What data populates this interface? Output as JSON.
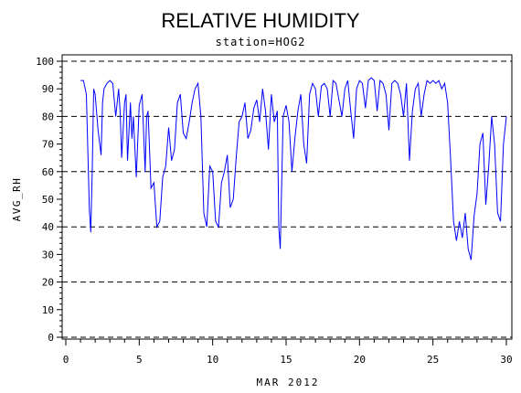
{
  "chart_data": {
    "type": "line",
    "title": "RELATIVE HUMIDITY",
    "subtitle": "station=HOG2",
    "xlabel": "MAR 2012",
    "ylabel": "AVG_RH",
    "xlim": [
      0,
      30
    ],
    "ylim": [
      0,
      100
    ],
    "x_ticks": [
      0,
      5,
      10,
      15,
      20,
      25,
      30
    ],
    "y_ticks": [
      0,
      10,
      20,
      30,
      40,
      50,
      60,
      70,
      80,
      90,
      100
    ],
    "gridlines_y": [
      0,
      20,
      40,
      60,
      80,
      100
    ],
    "grid": "horizontal dashed",
    "line_color": "#0000ff",
    "series": [
      {
        "x": [
          1.0,
          1.2,
          1.4,
          1.6,
          1.7,
          1.8,
          1.9,
          2.0,
          2.2,
          2.4,
          2.5,
          2.6,
          2.8,
          3.0,
          3.2,
          3.4,
          3.6,
          3.7,
          3.8,
          4.0,
          4.1,
          4.2,
          4.4,
          4.5,
          4.6,
          4.8,
          5.0,
          5.2,
          5.4,
          5.5,
          5.6,
          5.8,
          6.0,
          6.2,
          6.4,
          6.6,
          6.8,
          7.0,
          7.2,
          7.4,
          7.6,
          7.8,
          8.0,
          8.2,
          8.4,
          8.6,
          8.8,
          9.0,
          9.2,
          9.4,
          9.6,
          9.8,
          10.0,
          10.2,
          10.4,
          10.6,
          10.8,
          11.0,
          11.2,
          11.4,
          11.6,
          11.8,
          12.0,
          12.2,
          12.4,
          12.6,
          12.8,
          13.0,
          13.2,
          13.4,
          13.6,
          13.8,
          14.0,
          14.2,
          14.4,
          14.5,
          14.6,
          14.8,
          15.0,
          15.2,
          15.4,
          15.6,
          15.8,
          16.0,
          16.2,
          16.4,
          16.6,
          16.8,
          17.0,
          17.2,
          17.4,
          17.6,
          17.8,
          18.0,
          18.2,
          18.4,
          18.6,
          18.8,
          19.0,
          19.2,
          19.4,
          19.6,
          19.8,
          20.0,
          20.2,
          20.4,
          20.6,
          20.8,
          21.0,
          21.2,
          21.4,
          21.6,
          21.8,
          22.0,
          22.2,
          22.4,
          22.6,
          22.8,
          23.0,
          23.2,
          23.4,
          23.6,
          23.8,
          24.0,
          24.2,
          24.4,
          24.6,
          24.8,
          25.0,
          25.2,
          25.4,
          25.6,
          25.8,
          26.0,
          26.2,
          26.4,
          26.6,
          26.8,
          27.0,
          27.2,
          27.4,
          27.6,
          27.8,
          28.0,
          28.2,
          28.4,
          28.6,
          28.8,
          29.0,
          29.2,
          29.4,
          29.6,
          29.8,
          30.0
        ],
        "y": [
          93,
          93,
          88,
          47,
          38,
          60,
          90,
          88,
          75,
          66,
          85,
          90,
          92,
          93,
          92,
          80,
          90,
          82,
          65,
          85,
          88,
          64,
          85,
          72,
          80,
          58,
          84,
          88,
          60,
          80,
          82,
          54,
          56,
          40,
          42,
          58,
          62,
          76,
          64,
          68,
          85,
          88,
          74,
          72,
          78,
          85,
          90,
          92,
          80,
          45,
          40,
          62,
          60,
          42,
          40,
          56,
          60,
          66,
          47,
          50,
          65,
          78,
          80,
          85,
          72,
          75,
          83,
          86,
          78,
          90,
          82,
          68,
          88,
          78,
          82,
          40,
          32,
          80,
          84,
          78,
          60,
          72,
          82,
          88,
          70,
          63,
          88,
          92,
          90,
          80,
          91,
          92,
          90,
          80,
          93,
          92,
          86,
          80,
          90,
          93,
          82,
          72,
          90,
          93,
          92,
          83,
          93,
          94,
          93,
          82,
          93,
          92,
          88,
          75,
          92,
          93,
          92,
          88,
          80,
          92,
          64,
          82,
          90,
          92,
          80,
          88,
          93,
          92,
          93,
          92,
          93,
          90,
          92,
          85,
          65,
          42,
          35,
          42,
          36,
          45,
          32,
          28,
          44,
          52,
          70,
          74,
          48,
          62,
          80,
          70,
          45,
          42,
          70,
          80
        ]
      }
    ]
  }
}
